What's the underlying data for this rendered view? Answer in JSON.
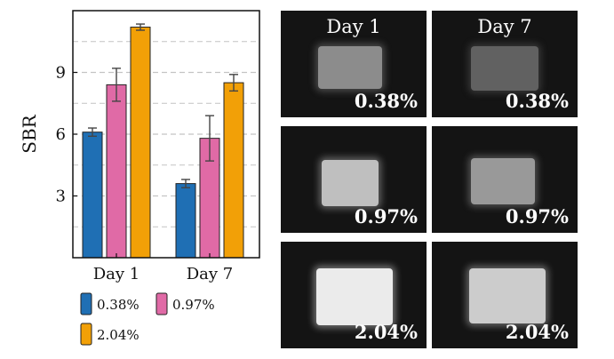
{
  "chart_data": {
    "type": "bar",
    "ylabel": "SBR",
    "xlabel": "",
    "title": "",
    "categories": [
      "Day 1",
      "Day 7"
    ],
    "ylim": [
      0,
      12
    ],
    "yticks": [
      3,
      6,
      9
    ],
    "grid": "dashed horizontal",
    "legend_placement": "bottom",
    "series": [
      {
        "name": "0.38%",
        "values": [
          6.1,
          3.6
        ],
        "errors": [
          0.2,
          0.2
        ],
        "color": "#1f6fb4"
      },
      {
        "name": "0.97%",
        "values": [
          8.4,
          5.8
        ],
        "errors": [
          0.8,
          1.1
        ],
        "color": "#e06aa6"
      },
      {
        "name": "2.04%",
        "values": [
          11.2,
          8.5
        ],
        "errors": [
          0.15,
          0.4
        ],
        "color": "#f2a007"
      }
    ]
  },
  "images": {
    "column_titles": [
      "Day 1",
      "Day 7"
    ],
    "panels": [
      {
        "row": 0,
        "col": 0,
        "label": "0.38%",
        "brightness": 0.55
      },
      {
        "row": 0,
        "col": 1,
        "label": "0.38%",
        "brightness": 0.38
      },
      {
        "row": 1,
        "col": 0,
        "label": "0.97%",
        "brightness": 0.75
      },
      {
        "row": 1,
        "col": 1,
        "label": "0.97%",
        "brightness": 0.6
      },
      {
        "row": 2,
        "col": 0,
        "label": "2.04%",
        "brightness": 0.92
      },
      {
        "row": 2,
        "col": 1,
        "label": "2.04%",
        "brightness": 0.8
      }
    ]
  }
}
